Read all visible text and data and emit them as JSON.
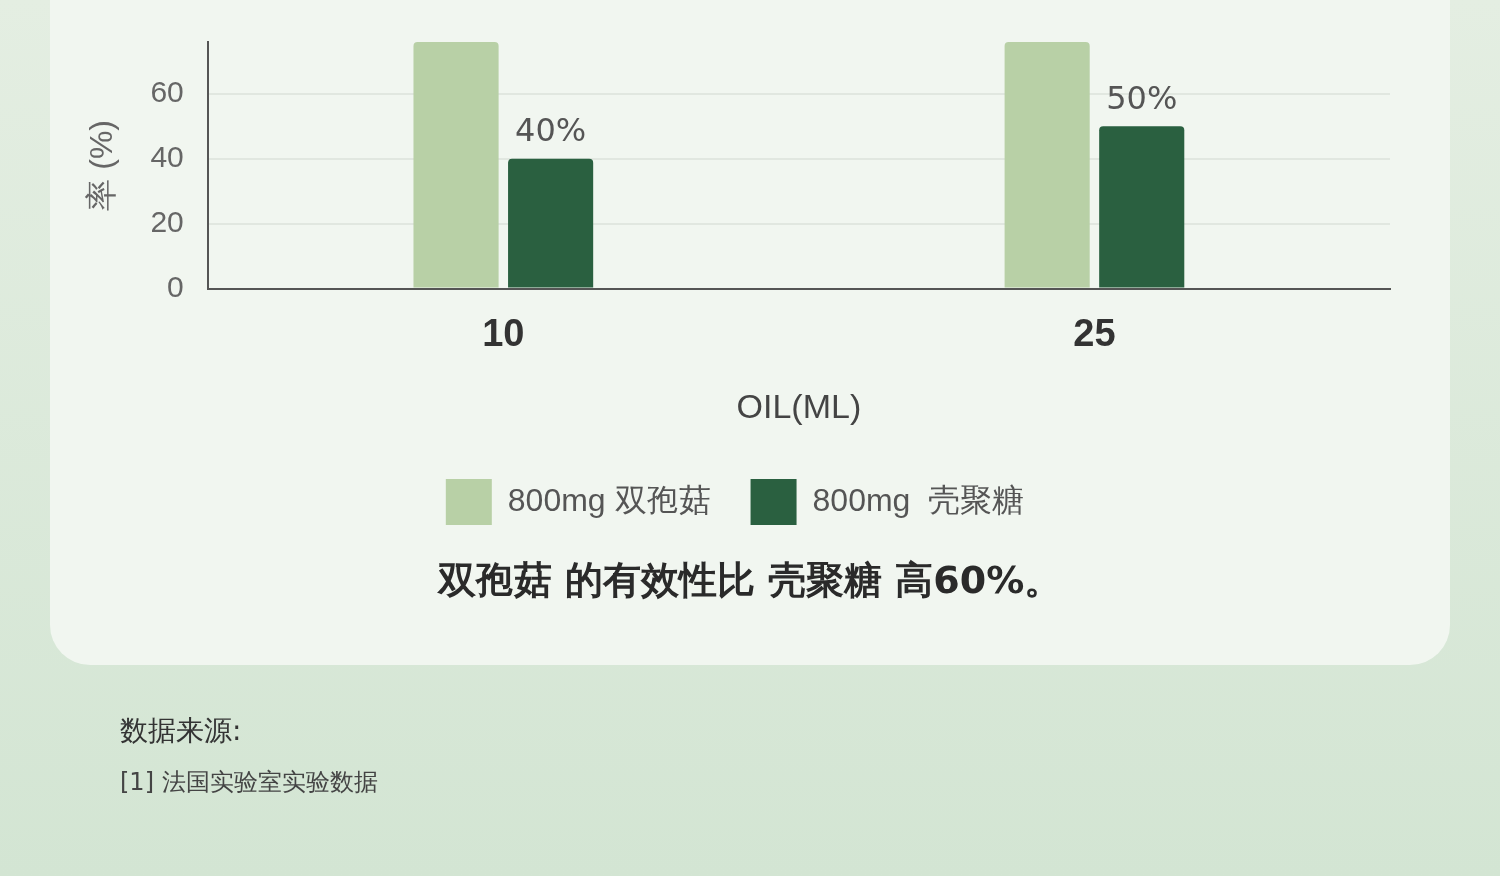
{
  "chart_data": {
    "type": "bar",
    "ylabel": "率 (%)",
    "xlabel": "OIL(ML)",
    "categories": [
      "10",
      "25"
    ],
    "series": [
      {
        "name": "800mg 双孢菇",
        "color": "#b8d0a6",
        "values": [
          76,
          76
        ]
      },
      {
        "name": "800mg  壳聚糖",
        "color": "#2a6040",
        "values": [
          40,
          50
        ],
        "value_labels": [
          "40%",
          "50%"
        ]
      }
    ],
    "ylim": [
      0,
      76
    ],
    "yticks": [
      0,
      20,
      40,
      60
    ],
    "grid": "y",
    "legend": "bottom",
    "annotations": [
      "双孢菇 的有效性比 壳聚糖 高60%。",
      "数据来源:",
      "[1] 法国实验室实验数据"
    ]
  }
}
